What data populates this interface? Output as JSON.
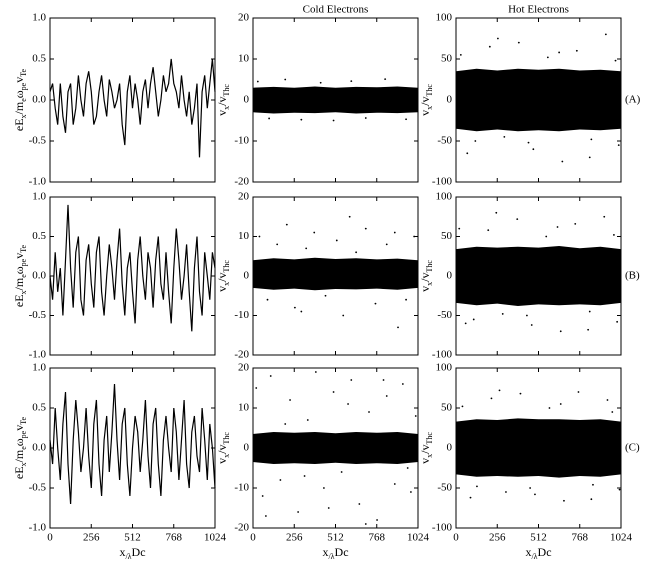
{
  "chart_data": [
    {
      "type": "line",
      "ylabel": [
        "eE",
        "x",
        "/m",
        "e",
        "ω",
        "pe",
        "v",
        "Te"
      ],
      "xlim": [
        0,
        1024
      ],
      "xticks": [
        0,
        256,
        512,
        768,
        1024
      ],
      "xtick_labels": false,
      "ylim": [
        -1,
        1
      ],
      "yticks": [
        {
          "value": -1,
          "label": "-1.0"
        },
        {
          "value": -0.5,
          "label": "-0.5"
        },
        {
          "value": 0,
          "label": "0.0"
        },
        {
          "value": 0.5,
          "label": "0.5"
        },
        {
          "value": 1,
          "label": "1.0"
        }
      ],
      "color": "#000000",
      "x": [
        0,
        16,
        32,
        48,
        64,
        80,
        96,
        112,
        128,
        144,
        160,
        176,
        192,
        208,
        224,
        240,
        256,
        272,
        288,
        304,
        320,
        336,
        352,
        368,
        384,
        400,
        416,
        432,
        448,
        464,
        480,
        496,
        512,
        528,
        544,
        560,
        576,
        592,
        608,
        624,
        640,
        656,
        672,
        688,
        704,
        720,
        736,
        752,
        768,
        784,
        800,
        816,
        832,
        848,
        864,
        880,
        896,
        912,
        928,
        944,
        960,
        976,
        992,
        1008,
        1024
      ],
      "values": [
        0.1,
        0.2,
        -0.1,
        -0.3,
        0.2,
        -0.2,
        -0.4,
        0.1,
        0.2,
        -0.3,
        -0.1,
        0.3,
        0.0,
        -0.2,
        0.2,
        0.35,
        0.1,
        -0.3,
        -0.2,
        0.1,
        0.3,
        0.0,
        -0.2,
        0.25,
        0.1,
        -0.1,
        0.0,
        0.2,
        -0.3,
        -0.55,
        0.1,
        0.3,
        -0.1,
        0.2,
        0.0,
        -0.3,
        0.1,
        0.25,
        -0.1,
        0.2,
        0.4,
        0.1,
        -0.2,
        0.0,
        0.3,
        0.1,
        0.2,
        0.5,
        0.2,
        0.1,
        -0.1,
        0.3,
        0.0,
        -0.2,
        0.1,
        -0.3,
        -0.1,
        0.2,
        -0.7,
        0.1,
        0.3,
        -0.1,
        0.2,
        0.5,
        0.1
      ]
    },
    {
      "type": "scatter",
      "title": "Cold Electrons",
      "ylabel": [
        "v",
        "x",
        "/v",
        "Thc"
      ],
      "xlim": [
        0,
        1024
      ],
      "xticks": [
        0,
        256,
        512,
        768,
        1024
      ],
      "xtick_labels": false,
      "ylim": [
        -20,
        20
      ],
      "yticks": [
        -20,
        -10,
        0,
        10,
        20
      ],
      "color": "#000000",
      "envelope": {
        "x": [
          0,
          128,
          256,
          384,
          512,
          640,
          768,
          896,
          1024
        ],
        "upper": [
          3,
          3.2,
          3,
          3.3,
          3,
          3.2,
          3.1,
          3.3,
          3
        ],
        "lower": [
          -3,
          -3.3,
          -3.1,
          -3.2,
          -3,
          -3.3,
          -3.1,
          -3.2,
          -3
        ]
      },
      "points": {
        "x": [
          30,
          100,
          200,
          300,
          420,
          500,
          610,
          700,
          820,
          950
        ],
        "y": [
          4.5,
          -4.5,
          5,
          -4.8,
          4.2,
          -5,
          4.6,
          -4.4,
          5.1,
          -4.7
        ]
      }
    },
    {
      "type": "scatter",
      "title": "Hot Electrons",
      "annotation": "(A)",
      "ylabel": [
        "v",
        "x",
        "/v",
        "Thc"
      ],
      "xlim": [
        0,
        1024
      ],
      "xticks": [
        0,
        256,
        512,
        768,
        1024
      ],
      "xtick_labels": false,
      "ylim": [
        -100,
        100
      ],
      "yticks": [
        -100,
        -50,
        0,
        50,
        100
      ],
      "color": "#000000",
      "envelope": {
        "x": [
          0,
          128,
          256,
          384,
          512,
          640,
          768,
          896,
          1024
        ],
        "upper": [
          35,
          38,
          36,
          38,
          37,
          38,
          36,
          37,
          35
        ],
        "lower": [
          -35,
          -38,
          -36,
          -38,
          -37,
          -38,
          -36,
          -37,
          -35
        ]
      },
      "points": {
        "x": [
          30,
          120,
          210,
          300,
          390,
          480,
          570,
          660,
          750,
          840,
          930,
          1010,
          70,
          260,
          450,
          640,
          830,
          990
        ],
        "y": [
          55,
          -50,
          65,
          -45,
          70,
          -60,
          52,
          -75,
          60,
          -48,
          80,
          -55,
          -65,
          75,
          -52,
          58,
          -70,
          48
        ]
      }
    },
    {
      "type": "line",
      "ylabel": [
        "eE",
        "x",
        "/m",
        "e",
        "ω",
        "pe",
        "v",
        "Te"
      ],
      "xlim": [
        0,
        1024
      ],
      "xticks": [
        0,
        256,
        512,
        768,
        1024
      ],
      "xtick_labels": false,
      "ylim": [
        -1,
        1
      ],
      "yticks": [
        {
          "value": -1,
          "label": "-1.0"
        },
        {
          "value": -0.5,
          "label": "-0.5"
        },
        {
          "value": 0,
          "label": "0.0"
        },
        {
          "value": 0.5,
          "label": "0.5"
        },
        {
          "value": 1,
          "label": "1.0"
        }
      ],
      "color": "#000000",
      "x": [
        0,
        16,
        32,
        48,
        64,
        80,
        96,
        112,
        128,
        144,
        160,
        176,
        192,
        208,
        224,
        240,
        256,
        272,
        288,
        304,
        320,
        336,
        352,
        368,
        384,
        400,
        416,
        432,
        448,
        464,
        480,
        496,
        512,
        528,
        544,
        560,
        576,
        592,
        608,
        624,
        640,
        656,
        672,
        688,
        704,
        720,
        736,
        752,
        768,
        784,
        800,
        816,
        832,
        848,
        864,
        880,
        896,
        912,
        928,
        944,
        960,
        976,
        992,
        1008,
        1024
      ],
      "values": [
        0.0,
        -0.3,
        0.3,
        -0.2,
        0.1,
        -0.5,
        0.2,
        0.9,
        0.1,
        -0.4,
        0.3,
        0.5,
        -0.3,
        -0.5,
        0.2,
        0.4,
        -0.1,
        -0.4,
        0.3,
        0.5,
        -0.2,
        -0.5,
        0.0,
        0.4,
        0.1,
        -0.3,
        0.2,
        0.6,
        -0.1,
        -0.5,
        0.1,
        0.3,
        -0.2,
        -0.6,
        0.2,
        0.5,
        0.0,
        -0.3,
        0.3,
        0.1,
        -0.4,
        0.2,
        0.5,
        -0.1,
        -0.3,
        0.3,
        -0.2,
        -0.6,
        0.1,
        0.6,
        0.2,
        -0.3,
        0.0,
        0.4,
        -0.2,
        -0.7,
        0.1,
        0.5,
        -0.2,
        -0.5,
        0.3,
        0.0,
        -0.3,
        0.3,
        0.1
      ]
    },
    {
      "type": "scatter",
      "ylabel": [
        "v",
        "x",
        "/v",
        "Thc"
      ],
      "xlim": [
        0,
        1024
      ],
      "xticks": [
        0,
        256,
        512,
        768,
        1024
      ],
      "xtick_labels": false,
      "ylim": [
        -20,
        20
      ],
      "yticks": [
        -20,
        -10,
        0,
        10,
        20
      ],
      "color": "#000000",
      "envelope": {
        "x": [
          0,
          128,
          256,
          384,
          512,
          640,
          768,
          896,
          1024
        ],
        "upper": [
          4,
          4.5,
          4.2,
          4.6,
          4.3,
          4.5,
          4.2,
          4.4,
          4
        ],
        "lower": [
          -3,
          -3.5,
          -3.2,
          -3.6,
          -3.3,
          -3.4,
          -3.2,
          -3.5,
          -3
        ]
      },
      "points": {
        "x": [
          40,
          90,
          150,
          210,
          260,
          330,
          380,
          450,
          520,
          560,
          640,
          700,
          760,
          830,
          880,
          950,
          1000,
          300,
          600,
          900
        ],
        "y": [
          10,
          -6,
          8,
          13,
          -8,
          7,
          11,
          -5,
          9,
          -10,
          6,
          12,
          -7,
          8,
          11,
          -6,
          10,
          -9,
          15,
          -13
        ]
      }
    },
    {
      "type": "scatter",
      "annotation": "(B)",
      "ylabel": [
        "v",
        "x",
        "/v",
        "Thc"
      ],
      "xlim": [
        0,
        1024
      ],
      "xticks": [
        0,
        256,
        512,
        768,
        1024
      ],
      "xtick_labels": false,
      "ylim": [
        -100,
        100
      ],
      "yticks": [
        -100,
        -50,
        0,
        50,
        100
      ],
      "color": "#000000",
      "envelope": {
        "x": [
          0,
          128,
          256,
          384,
          512,
          640,
          768,
          896,
          1024
        ],
        "upper": [
          34,
          37,
          36,
          37,
          36,
          38,
          35,
          37,
          34
        ],
        "lower": [
          -34,
          -37,
          -35,
          -38,
          -36,
          -37,
          -36,
          -37,
          -34
        ]
      },
      "points": {
        "x": [
          20,
          110,
          200,
          290,
          380,
          470,
          560,
          650,
          740,
          830,
          920,
          1000,
          60,
          250,
          440,
          630,
          820,
          980
        ],
        "y": [
          60,
          -55,
          58,
          -48,
          72,
          -62,
          50,
          -70,
          66,
          -45,
          75,
          -58,
          -60,
          80,
          -50,
          62,
          -68,
          52
        ]
      }
    },
    {
      "type": "line",
      "ylabel": [
        "eE",
        "x",
        "/m",
        "e",
        "ω",
        "pe",
        "v",
        "Te"
      ],
      "xlabel": [
        "x",
        "/λ",
        "Dc"
      ],
      "xlim": [
        0,
        1024
      ],
      "xticks": [
        0,
        256,
        512,
        768,
        1024
      ],
      "xtick_labels": true,
      "ylim": [
        -1,
        1
      ],
      "yticks": [
        {
          "value": -1,
          "label": "-1.0"
        },
        {
          "value": -0.5,
          "label": "-0.5"
        },
        {
          "value": 0,
          "label": "0.0"
        },
        {
          "value": 0.5,
          "label": "0.5"
        },
        {
          "value": 1,
          "label": "1.0"
        }
      ],
      "color": "#000000",
      "x": [
        0,
        16,
        32,
        48,
        64,
        80,
        96,
        112,
        128,
        144,
        160,
        176,
        192,
        208,
        224,
        240,
        256,
        272,
        288,
        304,
        320,
        336,
        352,
        368,
        384,
        400,
        416,
        432,
        448,
        464,
        480,
        496,
        512,
        528,
        544,
        560,
        576,
        592,
        608,
        624,
        640,
        656,
        672,
        688,
        704,
        720,
        736,
        752,
        768,
        784,
        800,
        816,
        832,
        848,
        864,
        880,
        896,
        912,
        928,
        944,
        960,
        976,
        992,
        1008,
        1024
      ],
      "values": [
        0.1,
        -0.2,
        0.5,
        0.0,
        -0.4,
        0.3,
        0.7,
        -0.2,
        -0.7,
        0.1,
        0.6,
        0.2,
        -0.3,
        0.0,
        0.5,
        -0.1,
        -0.5,
        0.3,
        0.6,
        -0.2,
        -0.6,
        0.1,
        0.4,
        -0.3,
        0.2,
        0.8,
        0.1,
        -0.4,
        0.3,
        0.5,
        -0.2,
        -0.6,
        0.0,
        0.4,
        0.2,
        -0.3,
        0.1,
        0.6,
        -0.1,
        -0.5,
        0.3,
        0.5,
        -0.2,
        -0.6,
        0.1,
        0.4,
        0.0,
        -0.3,
        0.5,
        0.2,
        -0.4,
        0.1,
        0.6,
        -0.2,
        -0.5,
        0.2,
        0.4,
        -0.1,
        -0.3,
        0.5,
        0.1,
        -0.4,
        0.3,
        0.0,
        -0.5
      ]
    },
    {
      "type": "scatter",
      "ylabel": [
        "v",
        "x",
        "/v",
        "Thc"
      ],
      "xlabel": [
        "x",
        "/λ",
        "Dc"
      ],
      "xlim": [
        0,
        1024
      ],
      "xticks": [
        0,
        256,
        512,
        768,
        1024
      ],
      "xtick_labels": true,
      "ylim": [
        -20,
        20
      ],
      "yticks": [
        -20,
        -10,
        0,
        10,
        20
      ],
      "color": "#000000",
      "envelope": {
        "x": [
          0,
          128,
          256,
          384,
          512,
          640,
          768,
          896,
          1024
        ],
        "upper": [
          3.5,
          4,
          3.8,
          4,
          3.7,
          4,
          3.8,
          4,
          3.5
        ],
        "lower": [
          -3.5,
          -4,
          -3.8,
          -4,
          -3.7,
          -4,
          -3.8,
          -4,
          -3.5
        ]
      },
      "points": {
        "x": [
          20,
          60,
          110,
          170,
          230,
          280,
          340,
          390,
          440,
          500,
          550,
          610,
          660,
          720,
          770,
          830,
          880,
          930,
          980,
          1010,
          80,
          200,
          320,
          470,
          590,
          700,
          810,
          960
        ],
        "y": [
          15,
          -12,
          18,
          -8,
          12,
          -16,
          7,
          19,
          -10,
          14,
          -6,
          17,
          -14,
          9,
          -18,
          13,
          -9,
          16,
          -11,
          8,
          -17,
          6,
          -7,
          -15,
          11,
          -19,
          17,
          -5
        ]
      }
    },
    {
      "type": "scatter",
      "annotation": "(C)",
      "ylabel": [
        "v",
        "x",
        "/v",
        "Thc"
      ],
      "xlabel": [
        "x",
        "/λ",
        "Dc"
      ],
      "xlim": [
        0,
        1024
      ],
      "xticks": [
        0,
        256,
        512,
        768,
        1024
      ],
      "xtick_labels": true,
      "ylim": [
        -100,
        100
      ],
      "yticks": [
        -100,
        -50,
        0,
        50,
        100
      ],
      "color": "#000000",
      "envelope": {
        "x": [
          0,
          128,
          256,
          384,
          512,
          640,
          768,
          896,
          1024
        ],
        "upper": [
          33,
          36,
          35,
          37,
          36,
          36,
          35,
          36,
          33
        ],
        "lower": [
          -33,
          -36,
          -35,
          -36,
          -35,
          -37,
          -35,
          -36,
          -33
        ]
      },
      "points": {
        "x": [
          40,
          130,
          220,
          310,
          400,
          490,
          580,
          670,
          760,
          850,
          940,
          1015,
          90,
          270,
          460,
          650,
          840,
          970
        ],
        "y": [
          52,
          -48,
          62,
          -55,
          68,
          -58,
          50,
          -66,
          70,
          -46,
          60,
          -52,
          -62,
          72,
          -50,
          55,
          -64,
          45
        ]
      }
    }
  ]
}
